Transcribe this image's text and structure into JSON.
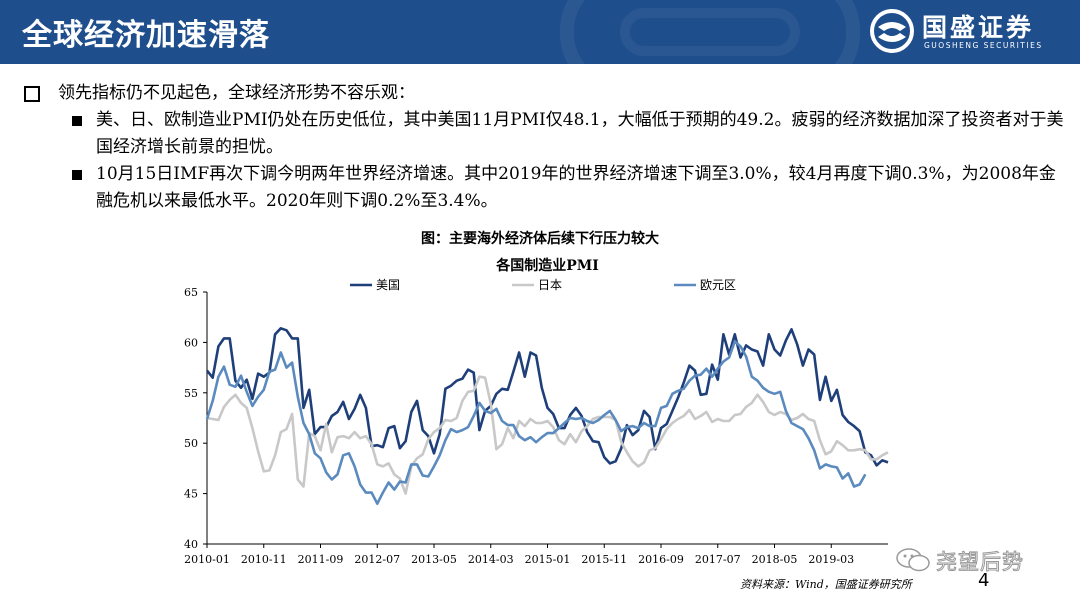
{
  "header": {
    "title": "全球经济加速滑落",
    "logo_cn": "国盛证券",
    "logo_en": "GUOSHENG SECURITIES",
    "bar_color": "#1f4e8c"
  },
  "bullets": {
    "main": "领先指标仍不见起色，全球经济形势不容乐观：",
    "sub": [
      "美、日、欧制造业PMI仍处在历史低位，其中美国11月PMI仅48.1，大幅低于预期的49.2。疲弱的经济数据加深了投资者对于美国经济增长前景的担忧。",
      "10月15日IMF再次下调今明两年世界经济增速。其中2019年的世界经济增速下调至3.0%，较4月再度下调0.3%，为2008年金融危机以来最低水平。2020年则下调0.2%至3.4%。"
    ]
  },
  "figure_title": "图：主要海外经济体后续下行压力较大",
  "chart_data": {
    "type": "line",
    "title": "各国制造业PMI",
    "ylim": [
      40,
      65
    ],
    "yticks": [
      40,
      45,
      50,
      55,
      60,
      65
    ],
    "xticks": [
      "2010-01",
      "2010-11",
      "2011-09",
      "2012-07",
      "2013-05",
      "2014-03",
      "2015-01",
      "2015-11",
      "2016-09",
      "2017-07",
      "2018-05",
      "2019-03"
    ],
    "legend_position": "top",
    "grid": false,
    "series": [
      {
        "name": "美国",
        "color": "#1f3f7a",
        "values": [
          57.2,
          56.5,
          59.6,
          60.4,
          60.4,
          56.2,
          55.5,
          56.3,
          54.4,
          56.9,
          56.6,
          57.0,
          60.8,
          61.4,
          61.2,
          60.4,
          60.4,
          53.5,
          55.3,
          50.9,
          51.6,
          51.6,
          52.7,
          53.1,
          54.1,
          52.4,
          53.4,
          54.8,
          53.5,
          49.7,
          49.8,
          49.6,
          51.5,
          51.7,
          49.5,
          50.2,
          53.1,
          54.2,
          51.3,
          50.7,
          49.0,
          50.9,
          55.4,
          55.7,
          56.2,
          56.4,
          57.3,
          57.0,
          51.3,
          53.2,
          53.7,
          54.9,
          55.4,
          55.3,
          57.1,
          59.0,
          56.6,
          59.0,
          58.7,
          55.5,
          53.5,
          52.9,
          51.5,
          51.5,
          52.8,
          53.5,
          52.7,
          51.1,
          50.2,
          50.1,
          48.6,
          48.0,
          48.2,
          49.5,
          51.8,
          50.8,
          51.3,
          53.2,
          52.6,
          49.4,
          51.5,
          51.9,
          53.2,
          54.5,
          56.0,
          57.7,
          57.2,
          54.8,
          54.9,
          57.8,
          56.3,
          60.8,
          58.8,
          60.8,
          58.5,
          59.7,
          59.3,
          59.1,
          57.7,
          60.8,
          59.3,
          58.7,
          60.2,
          61.3,
          59.8,
          57.7,
          59.3,
          58.8,
          54.3,
          56.6,
          54.2,
          55.3,
          52.8,
          52.1,
          51.7,
          51.2,
          49.1,
          48.8,
          47.8,
          48.3,
          48.1
        ]
      },
      {
        "name": "日本",
        "color": "#c8c8c8",
        "values": [
          52.5,
          52.4,
          52.3,
          53.6,
          54.3,
          54.8,
          54.0,
          53.5,
          51.5,
          49.2,
          47.2,
          47.3,
          48.8,
          51.1,
          51.4,
          52.9,
          46.4,
          45.7,
          51.0,
          50.7,
          49.3,
          51.9,
          49.1,
          50.6,
          50.7,
          50.5,
          51.1,
          50.5,
          50.7,
          49.9,
          47.9,
          47.7,
          48.0,
          46.9,
          46.5,
          45.0,
          47.7,
          48.5,
          48.9,
          50.4,
          51.1,
          51.5,
          52.3,
          52.2,
          52.5,
          54.2,
          55.1,
          55.2,
          56.6,
          56.5,
          53.9,
          49.4,
          49.9,
          51.5,
          50.5,
          52.2,
          51.7,
          52.4,
          52.0,
          52.0,
          52.2,
          51.6,
          50.3,
          49.9,
          50.9,
          50.1,
          51.2,
          51.7,
          52.4,
          52.6,
          52.6,
          52.6,
          52.3,
          50.1,
          49.1,
          48.2,
          47.7,
          48.1,
          49.3,
          49.5,
          50.4,
          51.4,
          52.0,
          52.4,
          52.7,
          53.3,
          52.4,
          52.7,
          53.1,
          52.1,
          52.4,
          52.2,
          52.2,
          52.8,
          52.9,
          53.6,
          54.0,
          54.8,
          54.1,
          53.1,
          52.8,
          53.1,
          52.9,
          52.3,
          52.5,
          52.9,
          52.4,
          52.2,
          50.3,
          48.9,
          49.2,
          50.2,
          49.8,
          49.3,
          49.3,
          49.4,
          49.3,
          48.4,
          48.4,
          48.8,
          49.1
        ]
      },
      {
        "name": "欧元区",
        "color": "#5b8abf",
        "values": [
          52.4,
          54.2,
          56.6,
          57.6,
          55.8,
          55.6,
          56.7,
          55.1,
          53.7,
          54.6,
          55.3,
          57.1,
          57.3,
          59.0,
          57.5,
          58.0,
          54.6,
          52.0,
          50.9,
          49.0,
          48.5,
          47.1,
          46.4,
          46.9,
          48.8,
          49.0,
          47.7,
          45.9,
          45.1,
          45.1,
          44.0,
          45.1,
          46.1,
          45.4,
          46.2,
          46.1,
          47.9,
          47.9,
          46.8,
          46.7,
          47.7,
          48.8,
          50.3,
          51.4,
          51.1,
          51.3,
          51.6,
          52.7,
          54.0,
          53.2,
          53.0,
          53.4,
          52.2,
          51.8,
          51.8,
          50.7,
          50.3,
          50.6,
          50.1,
          50.6,
          51.0,
          51.0,
          51.5,
          52.0,
          52.5,
          52.4,
          52.5,
          52.2,
          52.0,
          52.3,
          52.8,
          53.2,
          52.3,
          51.2,
          51.6,
          51.7,
          51.5,
          52.0,
          51.7,
          51.7,
          53.5,
          53.7,
          54.9,
          55.2,
          55.4,
          56.2,
          56.7,
          56.8,
          57.4,
          56.6,
          57.4,
          58.1,
          58.5,
          60.1,
          59.6,
          58.6,
          56.6,
          56.2,
          55.5,
          55.1,
          54.9,
          55.1,
          53.2,
          52.0,
          51.7,
          51.4,
          50.5,
          49.3,
          47.5,
          47.9,
          47.7,
          47.6,
          46.5,
          47.0,
          45.7,
          45.9,
          46.9
        ]
      }
    ]
  },
  "source": "资料来源：Wind，国盛证券研究所",
  "page_number": "4",
  "watermark": "尧望后势"
}
